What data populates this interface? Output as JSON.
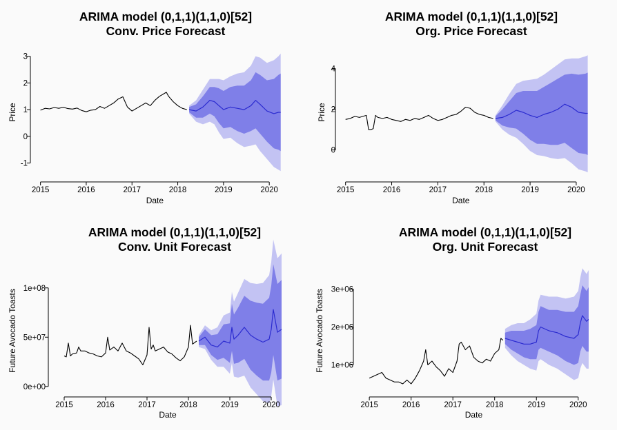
{
  "chart_data": [
    {
      "type": "line",
      "title": "ARIMA model (0,1,1)(1,1,0)[52]",
      "subtitle": "Conv. Price Forecast",
      "xlabel": "Date",
      "ylabel": "Price",
      "xlim": [
        2014.9,
        2020.45
      ],
      "ylim": [
        -1.5,
        3.3
      ],
      "x_ticks": [
        2015,
        2016,
        2017,
        2018,
        2019,
        2020
      ],
      "x_tick_labels": [
        "2015",
        "2016",
        "2017",
        "2018",
        "2019",
        "2020"
      ],
      "y_ticks": [
        -1,
        0,
        1,
        2,
        3
      ],
      "y_tick_labels": [
        "-1",
        "0",
        "1",
        "2",
        "3"
      ],
      "legend": "none",
      "grid": false,
      "colors": {
        "history": "#000000",
        "forecast": "#2b2bd0",
        "band80": "#7f7fe8",
        "band95": "#c3c3f3"
      },
      "history": {
        "x": [
          2015.0,
          2015.1,
          2015.2,
          2015.3,
          2015.4,
          2015.5,
          2015.6,
          2015.7,
          2015.8,
          2015.9,
          2016.0,
          2016.1,
          2016.2,
          2016.3,
          2016.4,
          2016.5,
          2016.6,
          2016.7,
          2016.8,
          2016.9,
          2017.0,
          2017.1,
          2017.2,
          2017.3,
          2017.4,
          2017.5,
          2017.6,
          2017.7,
          2017.75,
          2017.8,
          2017.9,
          2018.0,
          2018.1,
          2018.2
        ],
        "y": [
          0.98,
          1.05,
          1.03,
          1.08,
          1.05,
          1.09,
          1.04,
          1.02,
          1.06,
          0.97,
          0.92,
          0.98,
          1.0,
          1.12,
          1.05,
          1.15,
          1.25,
          1.4,
          1.48,
          1.1,
          0.95,
          1.05,
          1.15,
          1.25,
          1.15,
          1.35,
          1.5,
          1.6,
          1.65,
          1.5,
          1.3,
          1.15,
          1.05,
          1.0
        ]
      },
      "forecast": {
        "x": [
          2018.25,
          2018.4,
          2018.55,
          2018.7,
          2018.8,
          2018.9,
          2019.0,
          2019.15,
          2019.3,
          2019.45,
          2019.6,
          2019.7,
          2019.8,
          2019.95,
          2020.1,
          2020.2,
          2020.25
        ],
        "y": [
          1.0,
          0.95,
          1.1,
          1.35,
          1.3,
          1.15,
          1.0,
          1.1,
          1.05,
          1.0,
          1.15,
          1.35,
          1.2,
          0.95,
          0.85,
          0.9,
          0.9
        ],
        "lo80": [
          0.9,
          0.7,
          0.7,
          0.85,
          0.75,
          0.5,
          0.3,
          0.35,
          0.2,
          0.1,
          0.2,
          0.3,
          0.1,
          -0.2,
          -0.45,
          -0.5,
          -0.55
        ],
        "hi80": [
          1.1,
          1.2,
          1.5,
          1.85,
          1.85,
          1.8,
          1.7,
          1.85,
          1.9,
          1.9,
          2.1,
          2.4,
          2.3,
          2.1,
          2.15,
          2.3,
          2.35
        ],
        "lo95": [
          0.85,
          0.55,
          0.45,
          0.55,
          0.45,
          0.15,
          -0.1,
          -0.05,
          -0.25,
          -0.4,
          -0.35,
          -0.3,
          -0.55,
          -0.85,
          -1.15,
          -1.25,
          -1.3
        ],
        "hi95": [
          1.15,
          1.35,
          1.75,
          2.15,
          2.15,
          2.15,
          2.1,
          2.25,
          2.35,
          2.4,
          2.65,
          3.0,
          2.95,
          2.75,
          2.85,
          3.0,
          3.1
        ]
      }
    },
    {
      "type": "line",
      "title": "ARIMA model (0,1,1)(1,1,0)[52]",
      "subtitle": "Org. Price Forecast",
      "xlabel": "Date",
      "ylabel": "Price",
      "xlim": [
        2014.9,
        2020.45
      ],
      "ylim": [
        -1.3,
        5.0
      ],
      "x_ticks": [
        2015,
        2016,
        2017,
        2018,
        2019,
        2020
      ],
      "x_tick_labels": [
        "2015",
        "2016",
        "2017",
        "2018",
        "2019",
        "2020"
      ],
      "y_ticks": [
        0,
        2,
        4
      ],
      "y_tick_labels": [
        "0",
        "2",
        "4"
      ],
      "legend": "none",
      "grid": false,
      "colors": {
        "history": "#000000",
        "forecast": "#2b2bd0",
        "band80": "#7f7fe8",
        "band95": "#c3c3f3"
      },
      "history": {
        "x": [
          2015.0,
          2015.1,
          2015.2,
          2015.3,
          2015.45,
          2015.5,
          2015.55,
          2015.6,
          2015.65,
          2015.7,
          2015.8,
          2015.9,
          2016.0,
          2016.1,
          2016.2,
          2016.3,
          2016.4,
          2016.5,
          2016.6,
          2016.7,
          2016.8,
          2016.9,
          2017.0,
          2017.1,
          2017.2,
          2017.3,
          2017.4,
          2017.5,
          2017.6,
          2017.7,
          2017.8,
          2017.9,
          2018.0,
          2018.1,
          2018.2
        ],
        "y": [
          1.5,
          1.55,
          1.65,
          1.6,
          1.7,
          1.0,
          1.0,
          1.05,
          1.7,
          1.6,
          1.55,
          1.6,
          1.5,
          1.45,
          1.4,
          1.5,
          1.45,
          1.55,
          1.5,
          1.6,
          1.7,
          1.55,
          1.45,
          1.5,
          1.6,
          1.7,
          1.75,
          1.9,
          2.1,
          2.05,
          1.85,
          1.75,
          1.7,
          1.6,
          1.55
        ]
      },
      "forecast": {
        "x": [
          2018.25,
          2018.4,
          2018.55,
          2018.7,
          2018.85,
          2019.0,
          2019.15,
          2019.3,
          2019.45,
          2019.6,
          2019.75,
          2019.9,
          2020.05,
          2020.2,
          2020.25
        ],
        "y": [
          1.55,
          1.6,
          1.75,
          1.95,
          1.85,
          1.7,
          1.6,
          1.75,
          1.85,
          2.0,
          2.25,
          2.1,
          1.85,
          1.8,
          1.8
        ],
        "lo80": [
          1.45,
          1.2,
          1.1,
          1.05,
          0.8,
          0.5,
          0.3,
          0.3,
          0.25,
          0.25,
          0.35,
          0.1,
          -0.15,
          -0.2,
          -0.25
        ],
        "hi80": [
          1.65,
          2.0,
          2.4,
          2.8,
          2.9,
          2.9,
          2.9,
          3.1,
          3.3,
          3.5,
          3.7,
          3.75,
          3.7,
          3.75,
          3.8
        ],
        "lo95": [
          1.4,
          1.0,
          0.75,
          0.6,
          0.3,
          -0.05,
          -0.25,
          -0.3,
          -0.4,
          -0.45,
          -0.4,
          -0.65,
          -0.95,
          -1.05,
          -1.1
        ],
        "hi95": [
          1.7,
          2.2,
          2.75,
          3.25,
          3.4,
          3.45,
          3.5,
          3.7,
          3.95,
          4.2,
          4.45,
          4.5,
          4.5,
          4.6,
          4.65
        ]
      }
    },
    {
      "type": "line",
      "title": "ARIMA model (0,1,1)(1,1,0)[52]",
      "subtitle": "Conv. Unit Forecast",
      "xlabel": "Date",
      "ylabel": "Future Avocado Toasts",
      "xlim": [
        2014.75,
        2020.45
      ],
      "ylim": [
        -5000000,
        118000000
      ],
      "x_ticks": [
        2015,
        2016,
        2017,
        2018,
        2019,
        2020
      ],
      "x_tick_labels": [
        "2015",
        "2016",
        "2017",
        "2018",
        "2019",
        "2020"
      ],
      "y_ticks": [
        0,
        50000000,
        100000000
      ],
      "y_tick_labels": [
        "0e+00",
        "5e+07",
        "1e+08"
      ],
      "legend": "none",
      "grid": false,
      "colors": {
        "history": "#000000",
        "forecast": "#2b2bd0",
        "band80": "#7f7fe8",
        "band95": "#c3c3f3"
      },
      "history": {
        "x": [
          2015.0,
          2015.05,
          2015.1,
          2015.15,
          2015.2,
          2015.3,
          2015.35,
          2015.4,
          2015.5,
          2015.6,
          2015.7,
          2015.8,
          2015.9,
          2016.0,
          2016.05,
          2016.1,
          2016.2,
          2016.3,
          2016.4,
          2016.5,
          2016.6,
          2016.7,
          2016.8,
          2016.9,
          2017.0,
          2017.05,
          2017.1,
          2017.15,
          2017.2,
          2017.3,
          2017.4,
          2017.5,
          2017.6,
          2017.7,
          2017.8,
          2017.9,
          2018.0,
          2018.05,
          2018.1,
          2018.2
        ],
        "y": [
          31000000,
          30000000,
          44000000,
          31000000,
          33000000,
          34000000,
          40000000,
          36000000,
          36000000,
          34000000,
          33000000,
          31000000,
          30000000,
          34000000,
          50000000,
          37000000,
          40000000,
          36000000,
          44000000,
          36000000,
          34000000,
          31000000,
          28000000,
          22000000,
          32000000,
          60000000,
          38000000,
          42000000,
          36000000,
          38000000,
          40000000,
          35000000,
          33000000,
          29000000,
          26000000,
          30000000,
          40000000,
          62000000,
          43000000,
          46000000
        ]
      },
      "forecast": {
        "x": [
          2018.25,
          2018.4,
          2018.55,
          2018.7,
          2018.85,
          2019.0,
          2019.05,
          2019.1,
          2019.2,
          2019.35,
          2019.5,
          2019.65,
          2019.8,
          2019.95,
          2020.0,
          2020.05,
          2020.15,
          2020.25
        ],
        "y": [
          46000000,
          50000000,
          42000000,
          40000000,
          46000000,
          44000000,
          60000000,
          48000000,
          52000000,
          60000000,
          52000000,
          48000000,
          45000000,
          48000000,
          58000000,
          78000000,
          55000000,
          58000000
        ],
        "lo80": [
          42000000,
          42000000,
          32000000,
          27000000,
          29000000,
          24000000,
          36000000,
          23000000,
          24000000,
          28000000,
          17000000,
          11000000,
          6000000,
          6000000,
          14000000,
          32000000,
          6000000,
          8000000
        ],
        "hi80": [
          50000000,
          58000000,
          52000000,
          53000000,
          63000000,
          64000000,
          84000000,
          73000000,
          80000000,
          92000000,
          87000000,
          85000000,
          84000000,
          90000000,
          102000000,
          124000000,
          104000000,
          108000000
        ],
        "lo95": [
          40000000,
          38000000,
          27000000,
          20000000,
          20000000,
          13000000,
          24000000,
          10000000,
          9000000,
          11000000,
          -1000000,
          -8000000,
          -15000000,
          -17000000,
          -10000000,
          7000000,
          -20000000,
          -19000000
        ],
        "hi95": [
          52000000,
          62000000,
          57000000,
          60000000,
          72000000,
          75000000,
          96000000,
          86000000,
          95000000,
          109000000,
          105000000,
          104000000,
          105000000,
          113000000,
          126000000,
          149000000,
          130000000,
          135000000
        ]
      }
    },
    {
      "type": "line",
      "title": "ARIMA model (0,1,1)(1,1,0)[52]",
      "subtitle": "Org. Unit Forecast",
      "xlabel": "Date",
      "ylabel": "Future Avocado Toasts",
      "xlim": [
        2014.75,
        2020.45
      ],
      "ylim": [
        300000,
        3500000
      ],
      "x_ticks": [
        2015,
        2016,
        2017,
        2018,
        2019,
        2020
      ],
      "x_tick_labels": [
        "2015",
        "2016",
        "2017",
        "2018",
        "2019",
        "2020"
      ],
      "y_ticks": [
        1000000,
        2000000,
        3000000
      ],
      "y_tick_labels": [
        "1e+06",
        "2e+06",
        "3e+06"
      ],
      "legend": "none",
      "grid": false,
      "colors": {
        "history": "#000000",
        "forecast": "#2b2bd0",
        "band80": "#7f7fe8",
        "band95": "#c3c3f3"
      },
      "history": {
        "x": [
          2015.0,
          2015.1,
          2015.2,
          2015.3,
          2015.4,
          2015.5,
          2015.6,
          2015.7,
          2015.8,
          2015.9,
          2016.0,
          2016.1,
          2016.2,
          2016.3,
          2016.35,
          2016.4,
          2016.5,
          2016.6,
          2016.7,
          2016.8,
          2016.9,
          2017.0,
          2017.1,
          2017.15,
          2017.2,
          2017.3,
          2017.4,
          2017.5,
          2017.6,
          2017.7,
          2017.8,
          2017.9,
          2018.0,
          2018.1,
          2018.15,
          2018.2
        ],
        "y": [
          650000,
          700000,
          750000,
          800000,
          650000,
          600000,
          550000,
          550000,
          500000,
          600000,
          500000,
          650000,
          850000,
          1100000,
          1400000,
          1000000,
          1100000,
          950000,
          850000,
          700000,
          900000,
          800000,
          1100000,
          1550000,
          1600000,
          1400000,
          1500000,
          1200000,
          1100000,
          1050000,
          1150000,
          1100000,
          1300000,
          1400000,
          1700000,
          1650000
        ]
      },
      "forecast": {
        "x": [
          2018.25,
          2018.4,
          2018.55,
          2018.7,
          2018.85,
          2019.0,
          2019.05,
          2019.1,
          2019.3,
          2019.5,
          2019.7,
          2019.9,
          2020.0,
          2020.05,
          2020.1,
          2020.2,
          2020.25
        ],
        "y": [
          1700000,
          1650000,
          1600000,
          1550000,
          1550000,
          1600000,
          1900000,
          2000000,
          1900000,
          1850000,
          1750000,
          1700000,
          1800000,
          2100000,
          2300000,
          2150000,
          2200000
        ],
        "lo80": [
          1550000,
          1400000,
          1300000,
          1200000,
          1150000,
          1150000,
          1400000,
          1450000,
          1350000,
          1250000,
          1100000,
          1000000,
          1050000,
          1350000,
          1500000,
          1350000,
          1350000
        ],
        "hi80": [
          1850000,
          1900000,
          1900000,
          1900000,
          1950000,
          2050000,
          2400000,
          2550000,
          2450000,
          2450000,
          2400000,
          2400000,
          2550000,
          2850000,
          3100000,
          2950000,
          3050000
        ],
        "lo95": [
          1450000,
          1250000,
          1100000,
          1000000,
          900000,
          850000,
          1100000,
          1150000,
          1000000,
          900000,
          750000,
          600000,
          650000,
          900000,
          1050000,
          900000,
          900000
        ],
        "hi95": [
          1950000,
          2050000,
          2100000,
          2100000,
          2200000,
          2350000,
          2700000,
          2850000,
          2800000,
          2800000,
          2750000,
          2800000,
          2950000,
          3300000,
          3550000,
          3400000,
          3500000
        ]
      }
    }
  ]
}
